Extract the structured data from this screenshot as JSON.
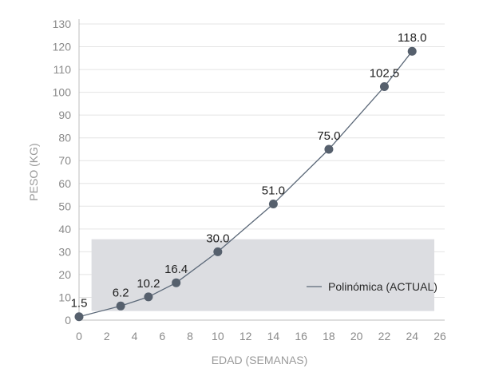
{
  "chart_data": {
    "type": "line",
    "xlabel": "EDAD (SEMANAS)",
    "ylabel": "PESO (KG)",
    "xlim": [
      0,
      26
    ],
    "ylim": [
      0,
      130
    ],
    "xticks": [
      0,
      2,
      4,
      6,
      8,
      10,
      12,
      14,
      16,
      18,
      20,
      22,
      24,
      26
    ],
    "yticks": [
      0,
      10,
      20,
      30,
      40,
      50,
      60,
      70,
      80,
      90,
      100,
      110,
      120,
      130
    ],
    "grid": "horizontal",
    "legend": {
      "position": "bottom-right",
      "label": "Polinómica (ACTUAL)"
    },
    "series": [
      {
        "name": "Polinómica (ACTUAL)",
        "x": [
          0,
          3,
          5,
          7,
          10,
          14,
          18,
          22,
          24
        ],
        "y": [
          1.5,
          6.2,
          10.2,
          16.4,
          30.0,
          51.0,
          75.0,
          102.5,
          118.0
        ],
        "labels": [
          "1.5",
          "6.2",
          "10.2",
          "16.4",
          "30.0",
          "51.0",
          "75.0",
          "102.5",
          "118.0"
        ]
      }
    ],
    "colors": {
      "line": "#5b6878",
      "marker": "#56606d",
      "legend_box": "#dcdde1",
      "grid": "#e4e4e4",
      "axis": "#bcbcbc"
    }
  }
}
